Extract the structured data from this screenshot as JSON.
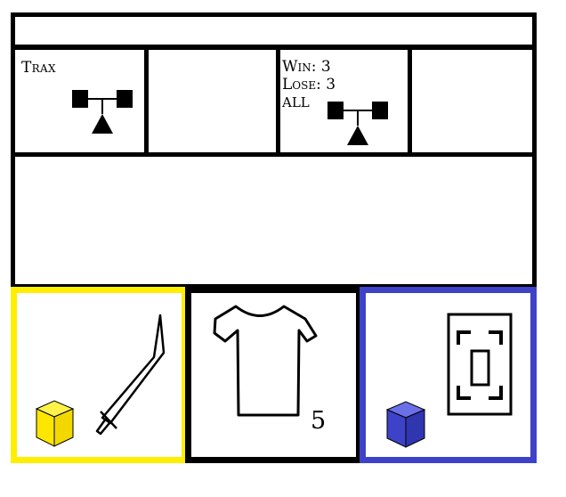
{
  "top_banner": {
    "text": ""
  },
  "opponent": {
    "name": "Trax",
    "scale_icon": "balance-scale-icon"
  },
  "record": {
    "win": "Win: 3",
    "lose": "Lose: 3",
    "mode": "ALL",
    "scale_icon": "balance-scale-icon"
  },
  "cards": {
    "weapon": {
      "border_color": "#ffee00",
      "cube_color": "#ffee00",
      "icon": "sword-icon"
    },
    "armor": {
      "border_color": "#000000",
      "icon": "shirt-icon",
      "count": "5"
    },
    "item": {
      "border_color": "#3d42c8",
      "cube_color": "#3d42c8",
      "icon": "card-icon"
    }
  }
}
